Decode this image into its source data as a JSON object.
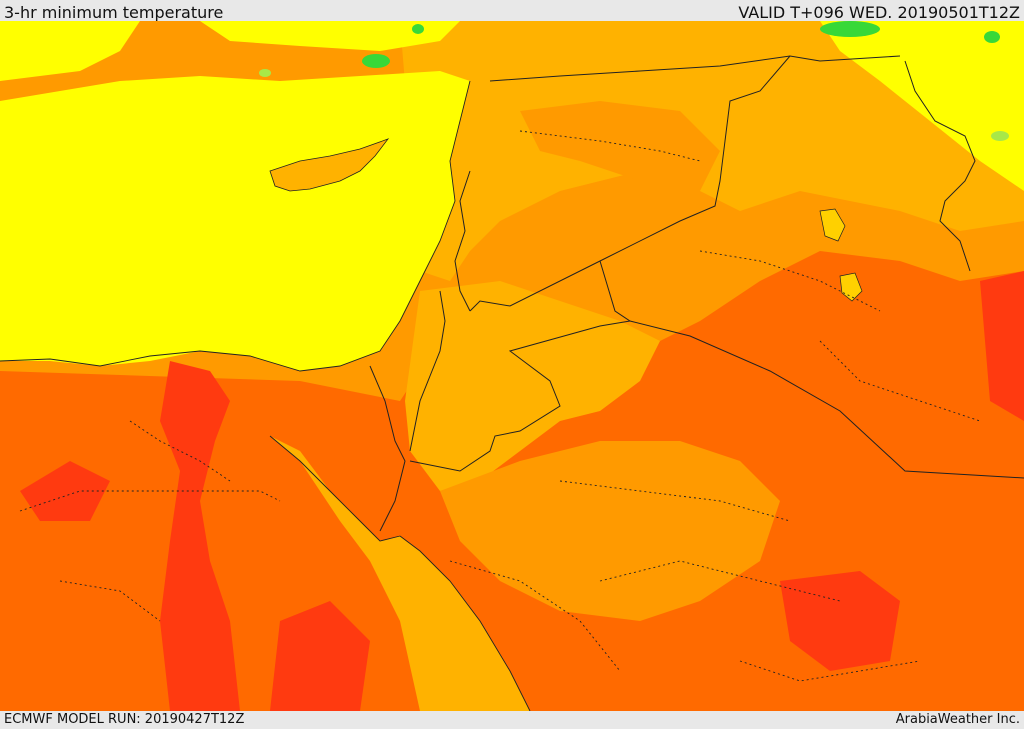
{
  "header": {
    "title": "3-hr minimum temperature",
    "valid": "VALID T+096 WED. 20190501T12Z"
  },
  "footer": {
    "model_run": "ECMWF MODEL RUN: 20190427T12Z",
    "credit": "ArabiaWeather Inc."
  },
  "colors": {
    "cold_green": "#38d838",
    "light_green": "#a8e848",
    "yellow": "#ffff00",
    "gold": "#ffd000",
    "light_orange": "#ffb200",
    "orange": "#ff9a00",
    "deep_orange": "#ff6a00",
    "red_orange": "#ff3a10"
  }
}
